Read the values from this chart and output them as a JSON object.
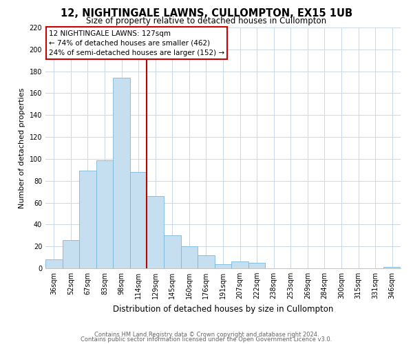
{
  "title": "12, NIGHTINGALE LAWNS, CULLOMPTON, EX15 1UB",
  "subtitle": "Size of property relative to detached houses in Cullompton",
  "xlabel": "Distribution of detached houses by size in Cullompton",
  "ylabel": "Number of detached properties",
  "bar_color": "#c5dff0",
  "bar_edge_color": "#7ab8d9",
  "categories": [
    "36sqm",
    "52sqm",
    "67sqm",
    "83sqm",
    "98sqm",
    "114sqm",
    "129sqm",
    "145sqm",
    "160sqm",
    "176sqm",
    "191sqm",
    "207sqm",
    "222sqm",
    "238sqm",
    "253sqm",
    "269sqm",
    "284sqm",
    "300sqm",
    "315sqm",
    "331sqm",
    "346sqm"
  ],
  "values": [
    8,
    26,
    89,
    99,
    174,
    88,
    66,
    30,
    20,
    12,
    4,
    6,
    5,
    0,
    0,
    0,
    0,
    0,
    0,
    0,
    1
  ],
  "ylim": [
    0,
    220
  ],
  "yticks": [
    0,
    20,
    40,
    60,
    80,
    100,
    120,
    140,
    160,
    180,
    200,
    220
  ],
  "annotation_title": "12 NIGHTINGALE LAWNS: 127sqm",
  "annotation_line1": "← 74% of detached houses are smaller (462)",
  "annotation_line2": "24% of semi-detached houses are larger (152) →",
  "footer_line1": "Contains HM Land Registry data © Crown copyright and database right 2024.",
  "footer_line2": "Contains public sector information licensed under the Open Government Licence v3.0.",
  "background_color": "#ffffff",
  "grid_color": "#c8d8e8",
  "red_line_index": 6,
  "title_fontsize": 10.5,
  "subtitle_fontsize": 8.5,
  "ylabel_fontsize": 8,
  "xlabel_fontsize": 8.5,
  "tick_fontsize": 7,
  "annot_fontsize": 7.5,
  "footer_fontsize": 6
}
